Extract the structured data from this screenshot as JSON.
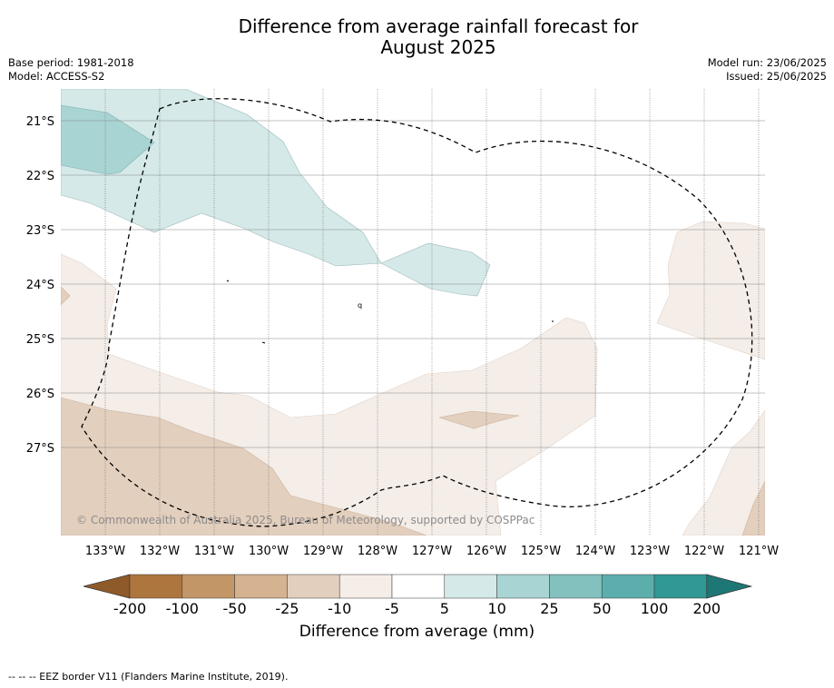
{
  "title_line1": "Difference from average rainfall forecast for",
  "title_line2": "August 2025",
  "meta_left": {
    "base_period": "Base period: 1981-2018",
    "model": "Model: ACCESS-S2"
  },
  "meta_right": {
    "model_run": "Model run: 23/06/2025",
    "issued": "Issued: 25/06/2025"
  },
  "map": {
    "lat_labels": [
      "21°S",
      "22°S",
      "23°S",
      "24°S",
      "25°S",
      "26°S",
      "27°S"
    ],
    "lon_labels": [
      "133°W",
      "132°W",
      "131°W",
      "130°W",
      "129°W",
      "128°W",
      "127°W",
      "126°W",
      "125°W",
      "124°W",
      "123°W",
      "122°W",
      "121°W"
    ],
    "copyright": "© Commonwealth of Australia 2025, Bureau of Meteorology, supported by COSPPac",
    "islet_label": "q"
  },
  "colorbar": {
    "ticks": [
      "-200",
      "-100",
      "-50",
      "-25",
      "-10",
      "-5",
      "5",
      "10",
      "25",
      "50",
      "100",
      "200"
    ],
    "colors": [
      "#8f5a2a",
      "#ad763e",
      "#c39668",
      "#d5b290",
      "#e3cfbd",
      "#f4ede8",
      "#ffffff",
      "#d4e9e8",
      "#a8d4d3",
      "#83c1bf",
      "#5caeac",
      "#319895",
      "#1d7775"
    ],
    "label": "Difference from average (mm)"
  },
  "footer_note": "--  --  -- EEZ border V11 (Flanders Marine Institute, 2019)."
}
